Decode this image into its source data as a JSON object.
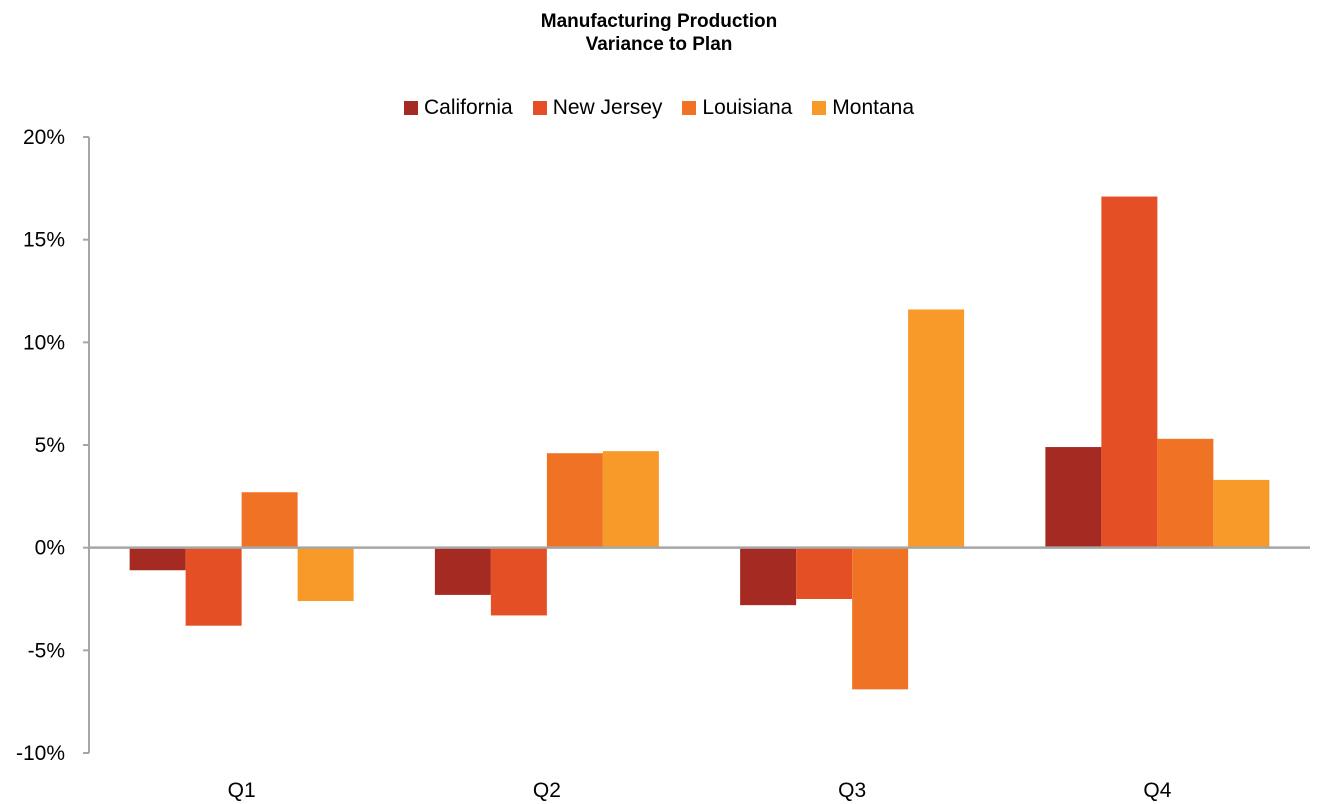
{
  "chart_data": {
    "type": "bar",
    "title": [
      "Manufacturing Production",
      "Variance to Plan"
    ],
    "categories": [
      "Q1",
      "Q2",
      "Q3",
      "Q4"
    ],
    "series": [
      {
        "name": "California",
        "color": "#A52A21",
        "values": [
          -1.1,
          -2.3,
          -2.8,
          4.9
        ]
      },
      {
        "name": "New Jersey",
        "color": "#E54F26",
        "values": [
          -3.8,
          -3.3,
          -2.5,
          17.1
        ]
      },
      {
        "name": "Louisiana",
        "color": "#F07325",
        "values": [
          2.7,
          4.6,
          -6.9,
          5.3
        ]
      },
      {
        "name": "Montana",
        "color": "#F79A2A",
        "values": [
          -2.6,
          4.7,
          11.6,
          3.3
        ]
      }
    ],
    "ylim": [
      -10,
      20
    ],
    "yticks": [
      20,
      15,
      10,
      5,
      0,
      -5,
      -10
    ],
    "ytick_labels": [
      "20%",
      "15%",
      "10%",
      "5%",
      "0%",
      "-5%",
      "-10%"
    ],
    "legend_position": "top",
    "grid": false,
    "axis_color": "#A6A6A6"
  }
}
